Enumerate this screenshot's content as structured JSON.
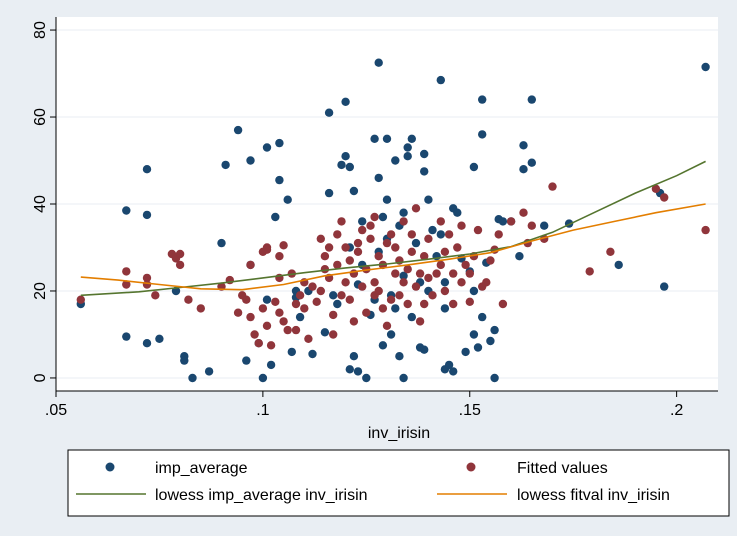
{
  "chart_data": {
    "type": "scatter",
    "xlabel": "inv_irisin",
    "ylabel": "",
    "xlim": [
      0.05,
      0.21
    ],
    "ylim": [
      -3,
      83
    ],
    "xticks": [
      0.05,
      0.1,
      0.15,
      0.2
    ],
    "xtick_labels": [
      ".05",
      ".1",
      ".15",
      ".2"
    ],
    "yticks": [
      0,
      20,
      40,
      60,
      80
    ],
    "ytick_labels": [
      "0",
      "20",
      "40",
      "60",
      "80"
    ],
    "grid": true,
    "legend_position": "bottom",
    "colors": {
      "imp_average": "#1a476f",
      "fitted": "#90353b",
      "lowess_imp": "#55752f",
      "lowess_fit": "#e37e00",
      "plot_bg": "#ffffff",
      "outer_bg": "#e9eef3",
      "grid": "#e9eef3"
    },
    "series": [
      {
        "name": "imp_average",
        "kind": "scatter",
        "points": [
          [
            0.056,
            17
          ],
          [
            0.067,
            38.5
          ],
          [
            0.067,
            9.5
          ],
          [
            0.072,
            48
          ],
          [
            0.072,
            37.5
          ],
          [
            0.072,
            8
          ],
          [
            0.075,
            9
          ],
          [
            0.079,
            20
          ],
          [
            0.081,
            5
          ],
          [
            0.081,
            4
          ],
          [
            0.083,
            0
          ],
          [
            0.087,
            1.5
          ],
          [
            0.09,
            31
          ],
          [
            0.091,
            49
          ],
          [
            0.094,
            57
          ],
          [
            0.096,
            4
          ],
          [
            0.097,
            26
          ],
          [
            0.097,
            50
          ],
          [
            0.099,
            8
          ],
          [
            0.1,
            0
          ],
          [
            0.101,
            53
          ],
          [
            0.101,
            18
          ],
          [
            0.102,
            3
          ],
          [
            0.103,
            37
          ],
          [
            0.104,
            54
          ],
          [
            0.104,
            45.5
          ],
          [
            0.106,
            41
          ],
          [
            0.108,
            18.5
          ],
          [
            0.108,
            20
          ],
          [
            0.107,
            6
          ],
          [
            0.109,
            14
          ],
          [
            0.111,
            20
          ],
          [
            0.112,
            5.5
          ],
          [
            0.115,
            10.5
          ],
          [
            0.116,
            61
          ],
          [
            0.116,
            42.5
          ],
          [
            0.117,
            19
          ],
          [
            0.118,
            17
          ],
          [
            0.119,
            49
          ],
          [
            0.12,
            51
          ],
          [
            0.12,
            63.5
          ],
          [
            0.121,
            30
          ],
          [
            0.121,
            48.5
          ],
          [
            0.121,
            2
          ],
          [
            0.122,
            43
          ],
          [
            0.122,
            5
          ],
          [
            0.123,
            1.5
          ],
          [
            0.123,
            21.5
          ],
          [
            0.124,
            36
          ],
          [
            0.124,
            26
          ],
          [
            0.125,
            0
          ],
          [
            0.126,
            14.5
          ],
          [
            0.127,
            55
          ],
          [
            0.127,
            18
          ],
          [
            0.128,
            46
          ],
          [
            0.128,
            29
          ],
          [
            0.128,
            72.5
          ],
          [
            0.129,
            37
          ],
          [
            0.129,
            7.5
          ],
          [
            0.13,
            55
          ],
          [
            0.13,
            41
          ],
          [
            0.13,
            32
          ],
          [
            0.131,
            19
          ],
          [
            0.131,
            10
          ],
          [
            0.132,
            16
          ],
          [
            0.132,
            50
          ],
          [
            0.133,
            5
          ],
          [
            0.133,
            35
          ],
          [
            0.134,
            38
          ],
          [
            0.134,
            23.5
          ],
          [
            0.134,
            0
          ],
          [
            0.135,
            53
          ],
          [
            0.135,
            51
          ],
          [
            0.136,
            55
          ],
          [
            0.136,
            14
          ],
          [
            0.137,
            31
          ],
          [
            0.138,
            7
          ],
          [
            0.138,
            22
          ],
          [
            0.139,
            47.5
          ],
          [
            0.139,
            51.5
          ],
          [
            0.139,
            6.5
          ],
          [
            0.14,
            41
          ],
          [
            0.14,
            20
          ],
          [
            0.141,
            34
          ],
          [
            0.142,
            28
          ],
          [
            0.143,
            33
          ],
          [
            0.143,
            68.5
          ],
          [
            0.144,
            22
          ],
          [
            0.144,
            16
          ],
          [
            0.144,
            2
          ],
          [
            0.145,
            3
          ],
          [
            0.146,
            39
          ],
          [
            0.146,
            1.5
          ],
          [
            0.147,
            38
          ],
          [
            0.148,
            27.5
          ],
          [
            0.149,
            6
          ],
          [
            0.15,
            24.5
          ],
          [
            0.151,
            48.5
          ],
          [
            0.151,
            20
          ],
          [
            0.151,
            10
          ],
          [
            0.152,
            7
          ],
          [
            0.153,
            14
          ],
          [
            0.153,
            56
          ],
          [
            0.153,
            64
          ],
          [
            0.154,
            26.5
          ],
          [
            0.155,
            8.5
          ],
          [
            0.156,
            11
          ],
          [
            0.156,
            0
          ],
          [
            0.157,
            36.5
          ],
          [
            0.158,
            36
          ],
          [
            0.16,
            36
          ],
          [
            0.162,
            28
          ],
          [
            0.163,
            48
          ],
          [
            0.163,
            53.5
          ],
          [
            0.165,
            64
          ],
          [
            0.165,
            49.5
          ],
          [
            0.168,
            35
          ],
          [
            0.174,
            35.5
          ],
          [
            0.186,
            26
          ],
          [
            0.196,
            42.5
          ],
          [
            0.197,
            21
          ],
          [
            0.207,
            71.5
          ]
        ]
      },
      {
        "name": "Fitted values",
        "kind": "scatter",
        "points": [
          [
            0.056,
            18
          ],
          [
            0.067,
            24.5
          ],
          [
            0.067,
            21.5
          ],
          [
            0.072,
            23
          ],
          [
            0.072,
            21.5
          ],
          [
            0.074,
            19
          ],
          [
            0.078,
            28.5
          ],
          [
            0.079,
            27.5
          ],
          [
            0.08,
            26
          ],
          [
            0.08,
            28.5
          ],
          [
            0.082,
            18
          ],
          [
            0.085,
            16
          ],
          [
            0.09,
            21
          ],
          [
            0.092,
            22.5
          ],
          [
            0.094,
            15
          ],
          [
            0.095,
            19
          ],
          [
            0.096,
            18
          ],
          [
            0.097,
            26
          ],
          [
            0.097,
            14
          ],
          [
            0.098,
            10
          ],
          [
            0.099,
            8
          ],
          [
            0.1,
            29
          ],
          [
            0.1,
            16
          ],
          [
            0.101,
            30
          ],
          [
            0.101,
            29.5
          ],
          [
            0.101,
            12
          ],
          [
            0.102,
            7.5
          ],
          [
            0.103,
            17.5
          ],
          [
            0.104,
            15
          ],
          [
            0.104,
            23
          ],
          [
            0.104,
            28
          ],
          [
            0.105,
            30.5
          ],
          [
            0.105,
            13
          ],
          [
            0.106,
            11
          ],
          [
            0.107,
            24
          ],
          [
            0.108,
            17
          ],
          [
            0.108,
            11
          ],
          [
            0.109,
            19
          ],
          [
            0.11,
            22
          ],
          [
            0.11,
            16
          ],
          [
            0.111,
            9
          ],
          [
            0.112,
            21
          ],
          [
            0.113,
            17.5
          ],
          [
            0.114,
            20
          ],
          [
            0.114,
            32
          ],
          [
            0.115,
            25
          ],
          [
            0.115,
            28
          ],
          [
            0.116,
            30
          ],
          [
            0.116,
            23
          ],
          [
            0.117,
            14.5
          ],
          [
            0.117,
            10
          ],
          [
            0.118,
            33
          ],
          [
            0.118,
            26
          ],
          [
            0.119,
            36
          ],
          [
            0.119,
            19
          ],
          [
            0.12,
            22
          ],
          [
            0.12,
            30
          ],
          [
            0.121,
            18
          ],
          [
            0.121,
            27
          ],
          [
            0.122,
            24
          ],
          [
            0.122,
            13
          ],
          [
            0.123,
            29
          ],
          [
            0.123,
            31
          ],
          [
            0.124,
            34
          ],
          [
            0.124,
            21
          ],
          [
            0.125,
            15
          ],
          [
            0.125,
            25
          ],
          [
            0.126,
            32
          ],
          [
            0.126,
            35
          ],
          [
            0.127,
            37
          ],
          [
            0.127,
            19
          ],
          [
            0.127,
            22
          ],
          [
            0.128,
            28
          ],
          [
            0.128,
            20
          ],
          [
            0.129,
            26
          ],
          [
            0.129,
            16
          ],
          [
            0.13,
            31
          ],
          [
            0.13,
            12
          ],
          [
            0.131,
            33
          ],
          [
            0.131,
            18
          ],
          [
            0.132,
            24
          ],
          [
            0.132,
            30
          ],
          [
            0.133,
            27
          ],
          [
            0.133,
            19
          ],
          [
            0.134,
            22
          ],
          [
            0.134,
            36
          ],
          [
            0.135,
            17
          ],
          [
            0.135,
            25
          ],
          [
            0.136,
            29
          ],
          [
            0.136,
            33
          ],
          [
            0.137,
            21
          ],
          [
            0.137,
            39
          ],
          [
            0.138,
            24
          ],
          [
            0.138,
            13
          ],
          [
            0.139,
            28
          ],
          [
            0.139,
            17
          ],
          [
            0.14,
            23
          ],
          [
            0.14,
            32
          ],
          [
            0.141,
            19
          ],
          [
            0.142,
            24
          ],
          [
            0.143,
            36
          ],
          [
            0.143,
            26
          ],
          [
            0.144,
            20
          ],
          [
            0.144,
            29
          ],
          [
            0.145,
            33
          ],
          [
            0.146,
            24
          ],
          [
            0.146,
            17
          ],
          [
            0.147,
            30
          ],
          [
            0.148,
            35
          ],
          [
            0.148,
            22
          ],
          [
            0.149,
            26
          ],
          [
            0.15,
            24
          ],
          [
            0.15,
            17.5
          ],
          [
            0.151,
            28
          ],
          [
            0.152,
            34
          ],
          [
            0.153,
            21
          ],
          [
            0.154,
            22
          ],
          [
            0.155,
            27
          ],
          [
            0.156,
            29.5
          ],
          [
            0.157,
            33
          ],
          [
            0.158,
            17
          ],
          [
            0.16,
            36
          ],
          [
            0.163,
            38
          ],
          [
            0.164,
            31
          ],
          [
            0.165,
            35
          ],
          [
            0.168,
            32
          ],
          [
            0.17,
            44
          ],
          [
            0.179,
            24.5
          ],
          [
            0.184,
            29
          ],
          [
            0.195,
            43.5
          ],
          [
            0.197,
            41.5
          ],
          [
            0.207,
            34
          ]
        ]
      },
      {
        "name": "lowess imp_average inv_irisin",
        "kind": "line",
        "x": [
          0.056,
          0.07,
          0.08,
          0.09,
          0.1,
          0.11,
          0.12,
          0.13,
          0.14,
          0.15,
          0.16,
          0.17,
          0.18,
          0.19,
          0.2,
          0.207
        ],
        "y": [
          19,
          19.8,
          20.8,
          21.8,
          23,
          24.2,
          25.3,
          26.2,
          27.3,
          28.5,
          30.2,
          33.5,
          38,
          42.5,
          46.5,
          49.8
        ]
      },
      {
        "name": "lowess fitval inv_irisin",
        "kind": "line",
        "x": [
          0.056,
          0.065,
          0.075,
          0.085,
          0.095,
          0.105,
          0.115,
          0.125,
          0.135,
          0.145,
          0.155,
          0.165,
          0.175,
          0.185,
          0.195,
          0.207
        ],
        "y": [
          23.2,
          22.5,
          21.5,
          20.5,
          20.3,
          21.5,
          23.5,
          24.8,
          26,
          27.3,
          28.8,
          31.5,
          34,
          36,
          38,
          40
        ]
      }
    ],
    "legend": {
      "entries": [
        {
          "label": "imp_average",
          "marker": "dot",
          "color_key": "imp_average"
        },
        {
          "label": "Fitted values",
          "marker": "dot",
          "color_key": "fitted"
        },
        {
          "label": "lowess imp_average inv_irisin",
          "marker": "line",
          "color_key": "lowess_imp"
        },
        {
          "label": "lowess fitval inv_irisin",
          "marker": "line",
          "color_key": "lowess_fit"
        }
      ]
    }
  }
}
